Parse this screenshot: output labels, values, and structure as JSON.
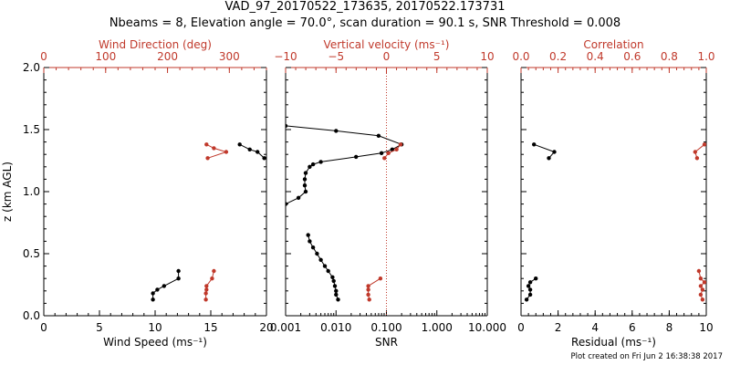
{
  "figure": {
    "title_line1": "VAD_97_20170522_173635, 20170522.173731",
    "title_line2": "Nbeams = 8, Elevation angle = 70.0°, scan duration = 90.1 s, SNR Threshold = 0.008",
    "credit": "Plot created on Fri Jun  2 16:38:38 2017",
    "colors": {
      "primary": "#000000",
      "secondary": "#c0392b"
    }
  },
  "chart_data": [
    {
      "type": "line",
      "ylabel": "z (km AGL)",
      "ylim": [
        0,
        2
      ],
      "yticks": [
        0.0,
        0.5,
        1.0,
        1.5,
        2.0
      ],
      "ytick_labels": [
        "0.0",
        "0.5",
        "1.0",
        "1.5",
        "2.0"
      ],
      "bottom_axis": {
        "label": "Wind Speed (ms⁻¹)",
        "lim": [
          0,
          20
        ],
        "scale": "linear",
        "ticks": [
          0,
          5,
          10,
          15,
          20
        ],
        "tick_labels": [
          "0",
          "5",
          "10",
          "15",
          "20"
        ]
      },
      "top_axis": {
        "label": "Wind Direction (deg)",
        "lim": [
          0,
          360
        ],
        "scale": "linear",
        "ticks": [
          0,
          100,
          200,
          300
        ],
        "tick_labels": [
          "0",
          "100",
          "200",
          "300"
        ]
      },
      "series": [
        {
          "axis": "bottom",
          "color": "#000000",
          "segments": [
            [
              [
                9.8,
                0.13
              ],
              [
                9.8,
                0.18
              ],
              [
                10.2,
                0.21
              ],
              [
                10.8,
                0.24
              ],
              [
                12.1,
                0.3
              ],
              [
                12.1,
                0.36
              ]
            ],
            [
              [
                17.6,
                1.38
              ],
              [
                18.5,
                1.34
              ],
              [
                19.2,
                1.32
              ],
              [
                19.8,
                1.27
              ]
            ]
          ]
        },
        {
          "axis": "top",
          "color": "#c0392b",
          "segments": [
            [
              [
                262,
                0.13
              ],
              [
                262,
                0.18
              ],
              [
                263,
                0.21
              ],
              [
                263,
                0.24
              ],
              [
                272,
                0.3
              ],
              [
                275,
                0.36
              ]
            ],
            [
              [
                263,
                1.38
              ],
              [
                275,
                1.35
              ],
              [
                295,
                1.32
              ],
              [
                265,
                1.27
              ]
            ]
          ]
        }
      ]
    },
    {
      "type": "line",
      "ylim": [
        0,
        2
      ],
      "bottom_axis": {
        "label": "SNR",
        "lim": [
          0.001,
          10
        ],
        "scale": "log",
        "ticks": [
          0.001,
          0.01,
          0.1,
          1,
          10
        ],
        "tick_labels": [
          "0.001",
          "0.010",
          "0.100",
          "1.000",
          "10.000"
        ]
      },
      "top_axis": {
        "label": "Vertical velocity (ms⁻¹)",
        "lim": [
          -10,
          10
        ],
        "scale": "linear",
        "ticks": [
          -10,
          -5,
          0,
          5,
          10
        ],
        "tick_labels": [
          "−10",
          "−5",
          "0",
          "5",
          "10"
        ]
      },
      "reference_line": {
        "axis": "top",
        "value": 0,
        "style": "dotted",
        "color": "#c0392b"
      },
      "series": [
        {
          "axis": "bottom",
          "color": "#000000",
          "segments": [
            [
              [
                0.0028,
                0.65
              ],
              [
                0.003,
                0.6
              ],
              [
                0.0035,
                0.55
              ],
              [
                0.0042,
                0.5
              ],
              [
                0.005,
                0.45
              ],
              [
                0.006,
                0.4
              ],
              [
                0.007,
                0.36
              ],
              [
                0.0085,
                0.31
              ],
              [
                0.009,
                0.28
              ],
              [
                0.0095,
                0.24
              ],
              [
                0.01,
                0.2
              ],
              [
                0.01,
                0.17
              ],
              [
                0.011,
                0.13
              ]
            ],
            [
              [
                0.001,
                0.9
              ],
              [
                0.0018,
                0.95
              ],
              [
                0.0025,
                1.0
              ],
              [
                0.0024,
                1.05
              ],
              [
                0.0024,
                1.1
              ],
              [
                0.0025,
                1.15
              ],
              [
                0.003,
                1.2
              ],
              [
                0.0035,
                1.22
              ],
              [
                0.005,
                1.24
              ],
              [
                0.025,
                1.28
              ],
              [
                0.08,
                1.31
              ],
              [
                0.13,
                1.34
              ],
              [
                0.2,
                1.38
              ],
              [
                0.07,
                1.45
              ],
              [
                0.01,
                1.49
              ],
              [
                0.001,
                1.53
              ]
            ]
          ]
        },
        {
          "axis": "top",
          "color": "#c0392b",
          "segments": [
            [
              [
                -1.7,
                0.13
              ],
              [
                -1.8,
                0.17
              ],
              [
                -1.8,
                0.21
              ],
              [
                -1.8,
                0.24
              ],
              [
                -0.6,
                0.3
              ]
            ],
            [
              [
                -0.2,
                1.27
              ],
              [
                0.2,
                1.31
              ],
              [
                1.0,
                1.34
              ],
              [
                1.4,
                1.38
              ]
            ]
          ]
        }
      ]
    },
    {
      "type": "line",
      "ylim": [
        0,
        2
      ],
      "bottom_axis": {
        "label": "Residual (ms⁻¹)",
        "lim": [
          0,
          10
        ],
        "scale": "linear",
        "ticks": [
          0,
          2,
          4,
          6,
          8,
          10
        ],
        "tick_labels": [
          "0",
          "2",
          "4",
          "6",
          "8",
          "10"
        ]
      },
      "top_axis": {
        "label": "Correlation",
        "lim": [
          0,
          1
        ],
        "scale": "linear",
        "ticks": [
          0.0,
          0.2,
          0.4,
          0.6,
          0.8,
          1.0
        ],
        "tick_labels": [
          "0.0",
          "0.2",
          "0.4",
          "0.6",
          "0.8",
          "1.0"
        ]
      },
      "series": [
        {
          "axis": "bottom",
          "color": "#000000",
          "segments": [
            [
              [
                0.3,
                0.13
              ],
              [
                0.5,
                0.17
              ],
              [
                0.5,
                0.21
              ],
              [
                0.4,
                0.24
              ],
              [
                0.5,
                0.27
              ],
              [
                0.8,
                0.3
              ]
            ],
            [
              [
                0.7,
                1.38
              ],
              [
                1.8,
                1.32
              ],
              [
                1.5,
                1.27
              ]
            ]
          ]
        },
        {
          "axis": "top",
          "color": "#c0392b",
          "segments": [
            [
              [
                0.98,
                0.13
              ],
              [
                0.97,
                0.17
              ],
              [
                0.98,
                0.21
              ],
              [
                0.97,
                0.24
              ],
              [
                0.99,
                0.27
              ],
              [
                0.97,
                0.3
              ],
              [
                0.96,
                0.36
              ]
            ],
            [
              [
                0.95,
                1.27
              ],
              [
                0.94,
                1.32
              ],
              [
                0.99,
                1.38
              ]
            ]
          ]
        }
      ]
    }
  ]
}
